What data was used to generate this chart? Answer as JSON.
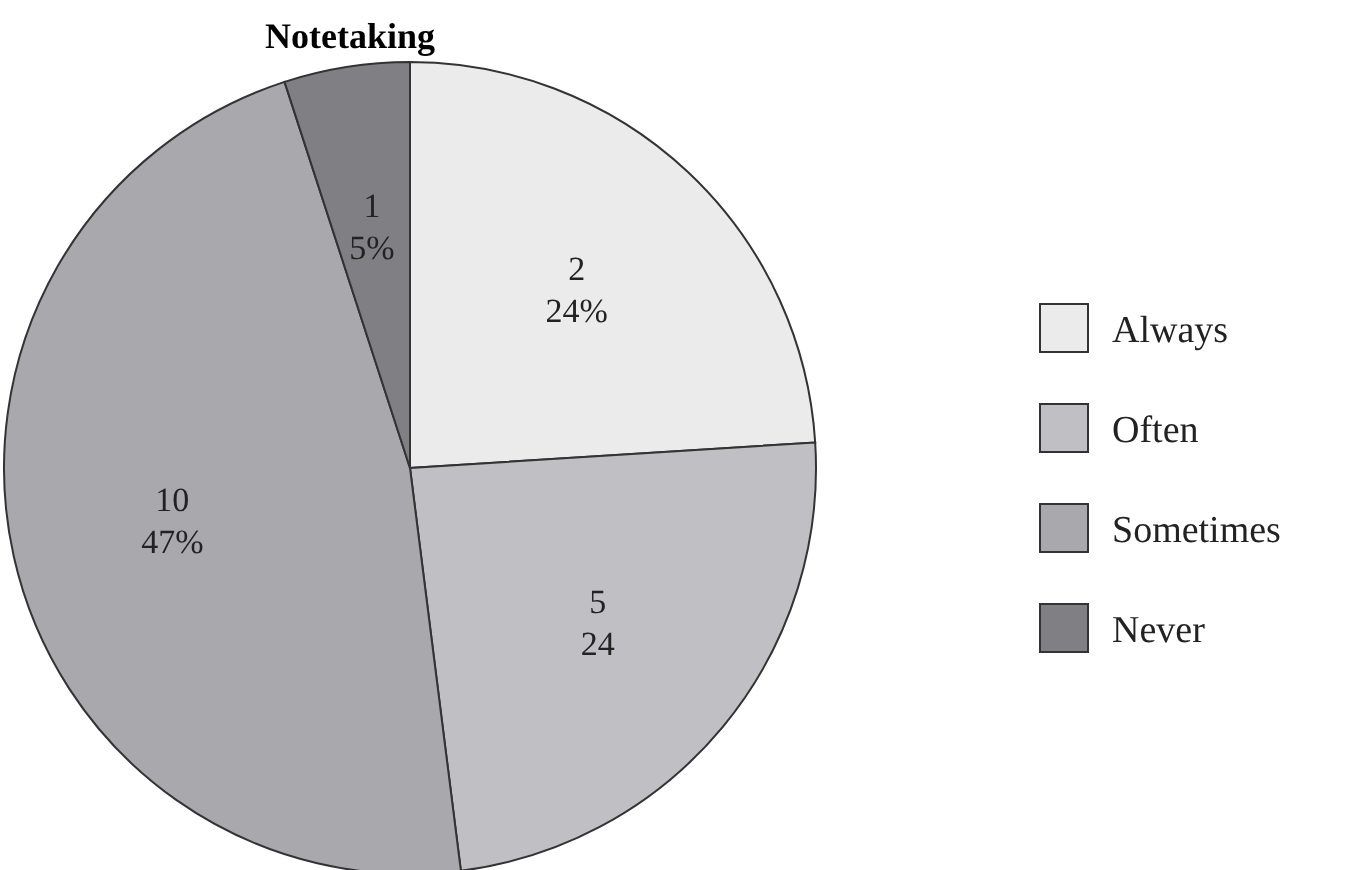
{
  "chart_data": {
    "type": "pie",
    "title": "Notetaking",
    "categories": [
      "Always",
      "Often",
      "Sometimes",
      "Never"
    ],
    "values": [
      24,
      24,
      47,
      5
    ],
    "value_labels": [
      "2\n24%",
      "5\n24",
      "10\n47%",
      "1\n5%"
    ],
    "colors": [
      "#ebebeb",
      "#c0c0c4",
      "#a9a9ad",
      "#808084"
    ],
    "legend": "right"
  }
}
